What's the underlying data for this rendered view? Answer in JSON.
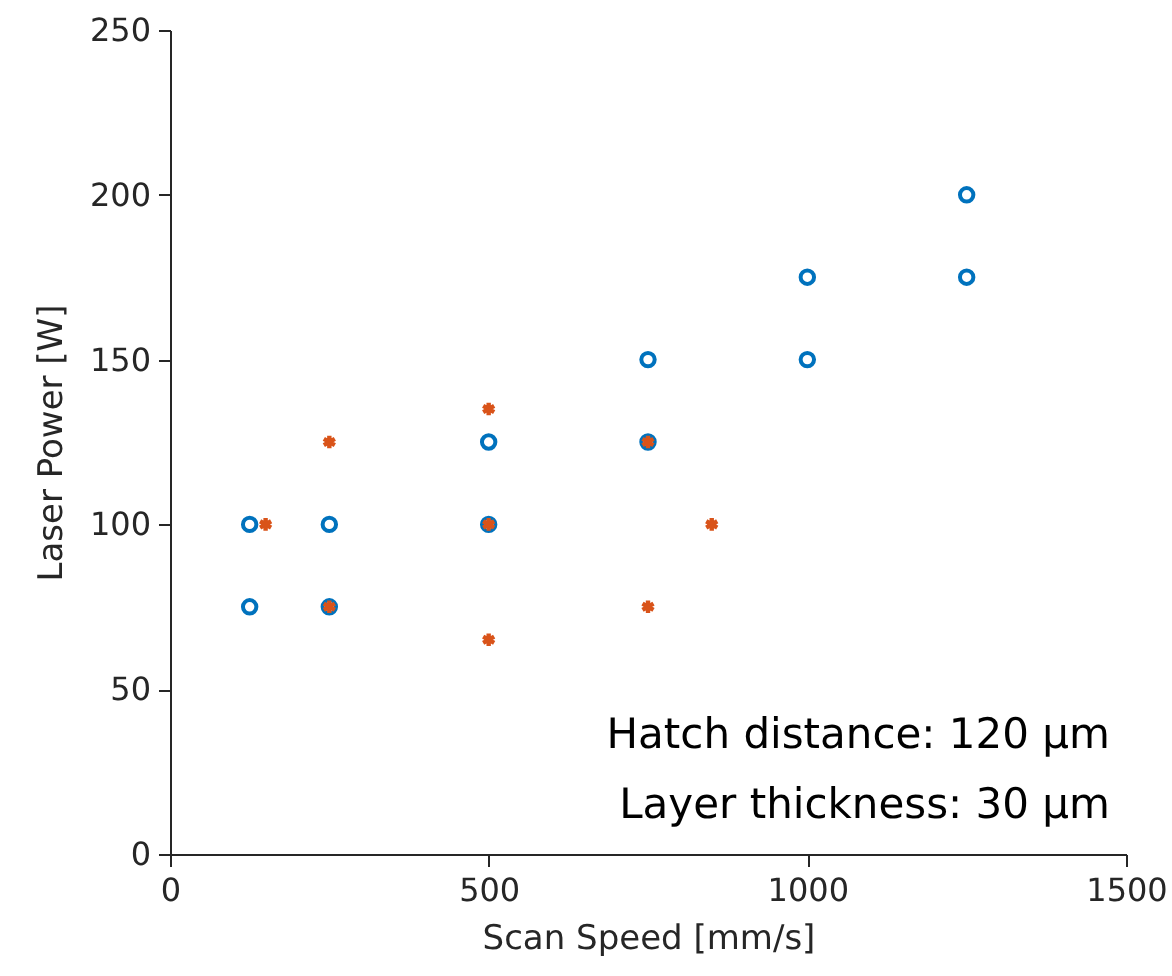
{
  "chart_data": {
    "type": "scatter",
    "xlabel": "Scan Speed [mm/s]",
    "ylabel": "Laser Power [W]",
    "xlim": [
      0,
      1500
    ],
    "xticks": [
      0,
      500,
      1000,
      1500
    ],
    "ylim": [
      0,
      250
    ],
    "yticks": [
      0,
      50,
      100,
      150,
      200,
      250
    ],
    "grid": false,
    "series": [
      {
        "color": "#0072bd",
        "marker": "circle",
        "x": [
          125,
          125,
          250,
          250,
          500,
          500,
          750,
          750,
          1000,
          1000,
          1250,
          1250
        ],
        "values": [
          100,
          75,
          100,
          75,
          125,
          100,
          150,
          125,
          175,
          150,
          200,
          175
        ]
      },
      {
        "color": "#d95319",
        "marker": "cross",
        "x": [
          150,
          250,
          250,
          500,
          500,
          500,
          750,
          750,
          850
        ],
        "values": [
          100,
          125,
          75,
          135,
          100,
          65,
          125,
          75,
          100
        ]
      }
    ],
    "annotations": [
      "Hatch distance: 120 μm",
      "Layer thickness: 30 μm"
    ]
  }
}
